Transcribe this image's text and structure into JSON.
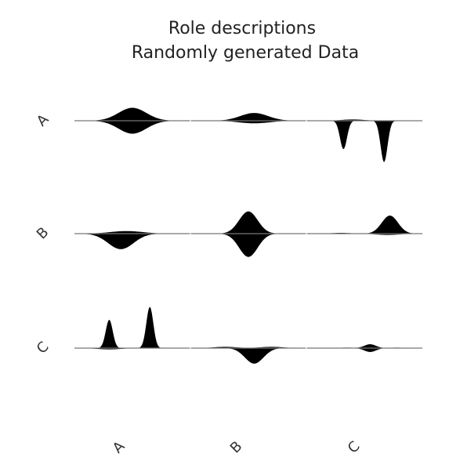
{
  "chart_data": {
    "type": "area",
    "title": "Role descriptions",
    "subtitle": "Randomly generated Data",
    "xlabel": "",
    "ylabel": "",
    "row_labels": [
      "A",
      "B",
      "C"
    ],
    "column_labels": [
      "A",
      "B",
      "C"
    ],
    "color": "#000000",
    "grid": false,
    "legend": "none",
    "cells": [
      {
        "row": "A",
        "column": "A",
        "up": [
          [
            0.05,
            0.5,
            0.12
          ]
        ],
        "down": [
          [
            0.05,
            0.5,
            0.12
          ]
        ]
      },
      {
        "row": "A",
        "column": "B",
        "up": [
          [
            0.03,
            0.55,
            0.12
          ]
        ],
        "down": [
          [
            0.01,
            0.55,
            0.13
          ]
        ]
      },
      {
        "row": "A",
        "column": "C",
        "up": [
          [
            0.005,
            0.4,
            0.1
          ]
        ],
        "down": [
          [
            0.11,
            0.32,
            0.03
          ],
          [
            0.16,
            0.67,
            0.03
          ]
        ]
      },
      {
        "row": "B",
        "column": "A",
        "up": [
          [
            0.01,
            0.45,
            0.14
          ]
        ],
        "down": [
          [
            0.06,
            0.4,
            0.11
          ]
        ]
      },
      {
        "row": "B",
        "column": "B",
        "up": [
          [
            0.086,
            0.5,
            0.08
          ]
        ],
        "down": [
          [
            0.09,
            0.5,
            0.08
          ]
        ]
      },
      {
        "row": "B",
        "column": "C",
        "up": [
          [
            0.003,
            0.3,
            0.08
          ],
          [
            0.07,
            0.72,
            0.07
          ]
        ],
        "down": [
          [
            0.005,
            0.7,
            0.1
          ]
        ]
      },
      {
        "row": "C",
        "column": "A",
        "up": [
          [
            0.11,
            0.3,
            0.03
          ],
          [
            0.16,
            0.65,
            0.03
          ]
        ],
        "down": [
          [
            0.005,
            0.3,
            0.1
          ]
        ]
      },
      {
        "row": "C",
        "column": "B",
        "up": [
          [
            0.005,
            0.3,
            0.1
          ],
          [
            0.005,
            0.7,
            0.1
          ]
        ],
        "down": [
          [
            0.06,
            0.55,
            0.08
          ]
        ]
      },
      {
        "row": "C",
        "column": "C",
        "up": [
          [
            0.002,
            0.35,
            0.06
          ],
          [
            0.015,
            0.55,
            0.05
          ],
          [
            0.002,
            0.78,
            0.05
          ]
        ],
        "down": [
          [
            0.015,
            0.55,
            0.05
          ]
        ]
      }
    ]
  }
}
